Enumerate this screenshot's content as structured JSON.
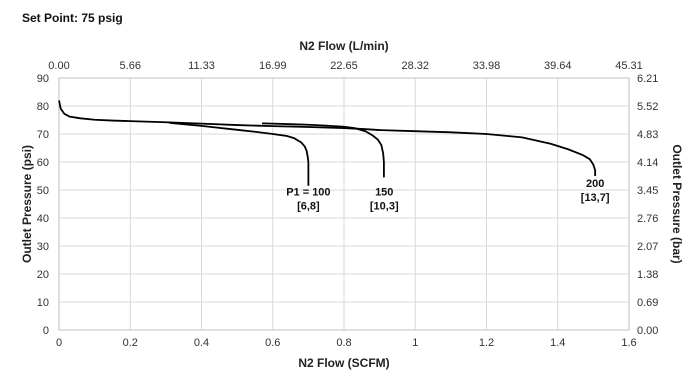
{
  "chart_data": {
    "type": "line",
    "title": "Set Point: 75 psig",
    "xlabel": "N2 Flow (SCFM)",
    "ylabel": "Outlet Pressure (psi)",
    "x2label": "N2 Flow (L/min)",
    "y2label": "Outlet Pressure (bar)",
    "xlim": [
      0,
      1.6
    ],
    "ylim": [
      0,
      90
    ],
    "x_ticks": [
      "0",
      "0.2",
      "0.4",
      "0.6",
      "0.8",
      "1",
      "1.2",
      "1.4",
      "1.6"
    ],
    "y_ticks": [
      "0",
      "10",
      "20",
      "30",
      "40",
      "50",
      "60",
      "70",
      "80",
      "90"
    ],
    "x2_ticks": [
      "0.00",
      "5.66",
      "11.33",
      "16.99",
      "22.65",
      "28.32",
      "33.98",
      "39.64",
      "45.31"
    ],
    "y2_ticks": [
      "0.00",
      "0.69",
      "1.38",
      "2.07",
      "2.76",
      "3.45",
      "4.14",
      "4.83",
      "5.52",
      "6.21"
    ],
    "grid": true,
    "series": [
      {
        "x": [
          0.0,
          0.005,
          0.015,
          0.03,
          0.06,
          0.1,
          0.15,
          0.2,
          0.3,
          0.4,
          0.5,
          0.6,
          0.7,
          0.8,
          0.85,
          0.9,
          1.0,
          1.1,
          1.2,
          1.3,
          1.38,
          1.43,
          1.47,
          1.49,
          1.5,
          1.505,
          1.505
        ],
        "y": [
          82,
          79,
          77.2,
          76.2,
          75.6,
          75.1,
          74.8,
          74.6,
          74.2,
          73.7,
          73.2,
          72.8,
          72.5,
          72.1,
          71.8,
          71.4,
          71.0,
          70.6,
          70.0,
          68.8,
          66.5,
          64.5,
          62.5,
          61.0,
          59.0,
          57.0,
          55.0
        ]
      },
      {
        "x": [
          0.57,
          0.6,
          0.65,
          0.7,
          0.75,
          0.8,
          0.83,
          0.86,
          0.88,
          0.895,
          0.905,
          0.91,
          0.912,
          0.912
        ],
        "y": [
          73.8,
          73.7,
          73.5,
          73.3,
          73.0,
          72.6,
          72.1,
          71.0,
          69.5,
          68.0,
          66.0,
          63.0,
          60.0,
          54.5
        ]
      },
      {
        "x": [
          0.31,
          0.35,
          0.4,
          0.45,
          0.5,
          0.55,
          0.6,
          0.64,
          0.66,
          0.68,
          0.69,
          0.695,
          0.698,
          0.7,
          0.7,
          0.7
        ],
        "y": [
          74.0,
          73.5,
          72.9,
          72.2,
          71.5,
          70.8,
          70.0,
          69.3,
          68.5,
          67.0,
          65.5,
          64.0,
          62.0,
          60.0,
          56.0,
          51.5
        ]
      }
    ],
    "annotations": [
      {
        "lines": [
          "P1 = 100",
          "[6,8]"
        ],
        "x": 0.7,
        "y": 48
      },
      {
        "lines": [
          "150",
          "[10,3]"
        ],
        "x": 0.913,
        "y": 48
      },
      {
        "lines": [
          "200",
          "[13,7]"
        ],
        "x": 1.505,
        "y": 51
      }
    ]
  }
}
